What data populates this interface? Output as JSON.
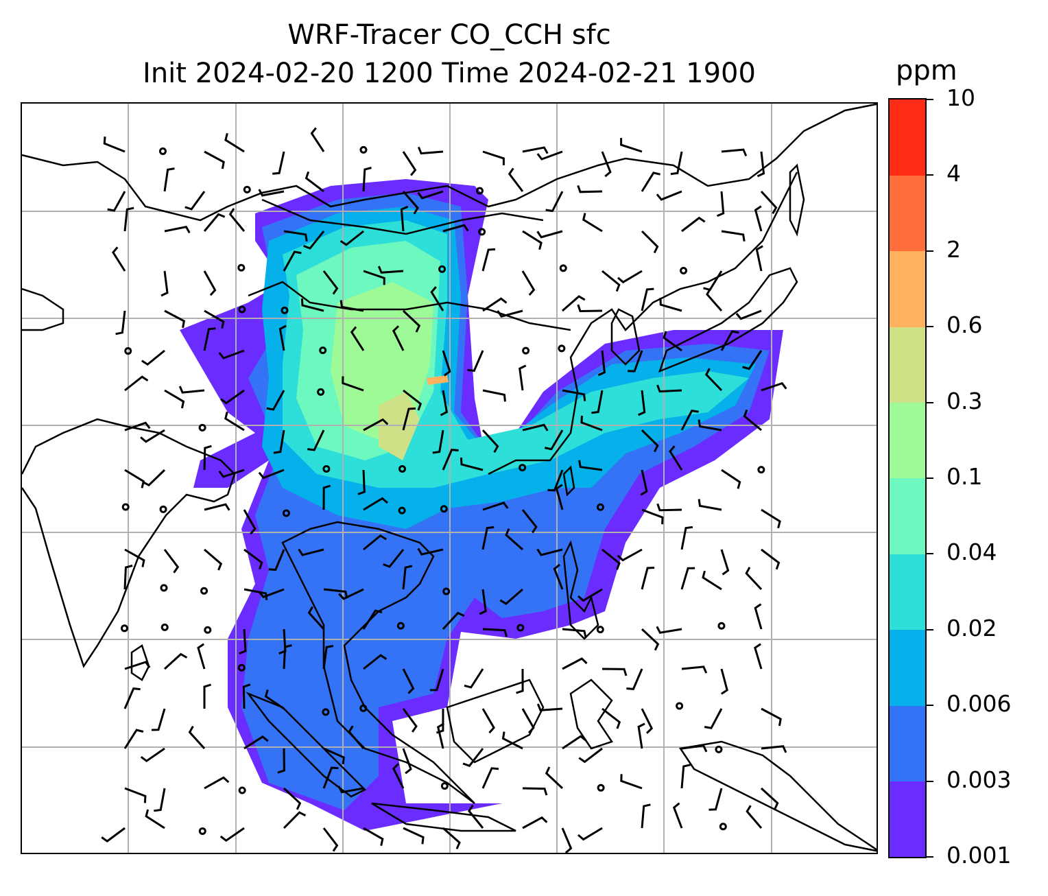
{
  "title_line1": "WRF-Tracer CO_CCH sfc",
  "title_line2": "Init 2024-02-20 1200 Time 2024-02-21 1900",
  "colorbar": {
    "unit": "ppm",
    "levels": [
      "0.001",
      "0.003",
      "0.006",
      "0.02",
      "0.04",
      "0.1",
      "0.3",
      "0.6",
      "2",
      "4",
      "10"
    ],
    "colors": [
      "#6a2cff",
      "#3473f5",
      "#06b0ea",
      "#2ddfd8",
      "#6cf8bf",
      "#9efa96",
      "#cfe187",
      "#ffb15f",
      "#ff6e3b",
      "#ff2b14"
    ]
  },
  "map": {
    "projection": "plate carree with lat/lon gridlines",
    "gridline_color": "#b0b0b0",
    "coastline_color": "#000000",
    "wind_barbs": "black barbs; circles denote calm winds",
    "tracer_field": "CO_CCH surface concentration, filled contours"
  }
}
